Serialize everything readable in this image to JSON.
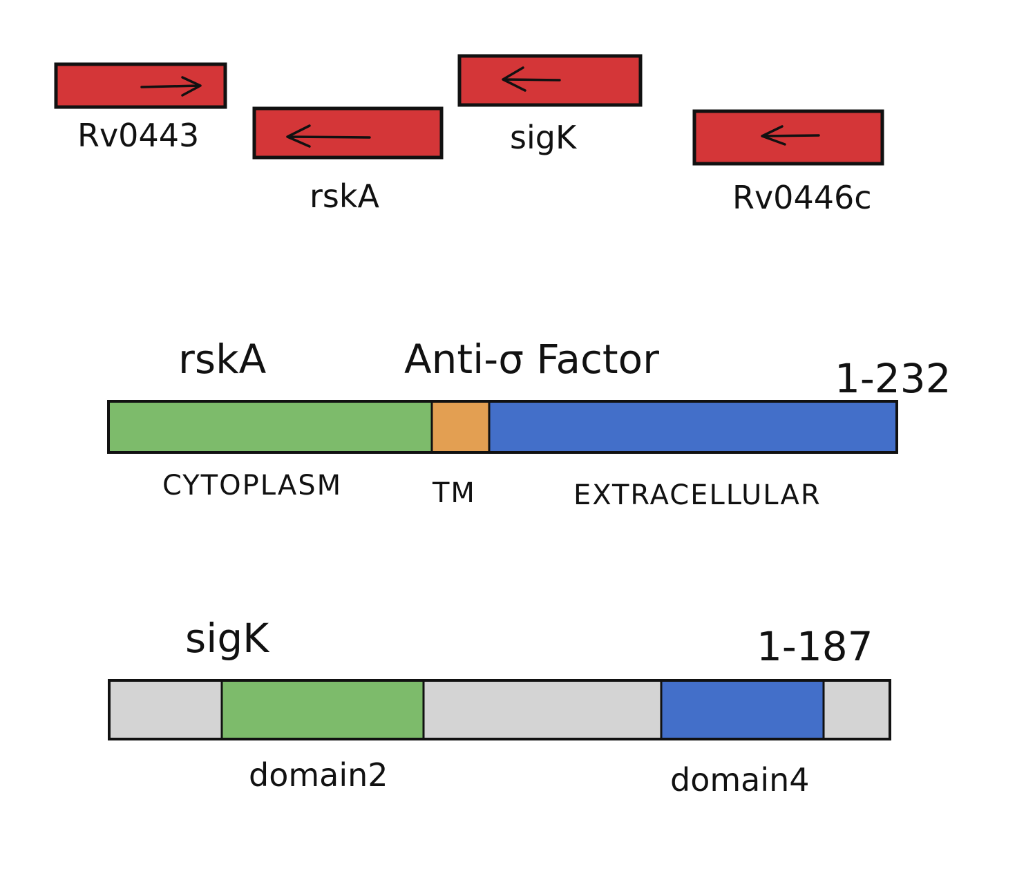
{
  "colors": {
    "gene": "#d43638",
    "cytoplasm": "#7dbb6b",
    "tm": "#e39f52",
    "extracellular": "#436fc9",
    "neutral": "#d4d4d4",
    "domain2": "#7dbb6b",
    "domain4": "#436fc9",
    "ink": "#111111"
  },
  "genes": [
    {
      "id": "rv0443",
      "label": "Rv0443",
      "direction": "forward"
    },
    {
      "id": "rska",
      "label": "rskA",
      "direction": "reverse"
    },
    {
      "id": "sigk",
      "label": "sigK",
      "direction": "reverse"
    },
    {
      "id": "rv0446c",
      "label": "Rv0446c",
      "direction": "reverse"
    }
  ],
  "rska_protein": {
    "name": "rskA",
    "description": "Anti-σ Factor",
    "range": "1-232",
    "regions": [
      {
        "label": "CYTOPLASM",
        "color_key": "cytoplasm"
      },
      {
        "label": "TM",
        "color_key": "tm"
      },
      {
        "label": "EXTRACELLULAR",
        "color_key": "extracellular"
      }
    ]
  },
  "sigk_protein": {
    "name": "sigK",
    "range": "1-187",
    "domains": [
      {
        "label": "domain2",
        "color_key": "domain2"
      },
      {
        "label": "domain4",
        "color_key": "domain4"
      }
    ]
  }
}
